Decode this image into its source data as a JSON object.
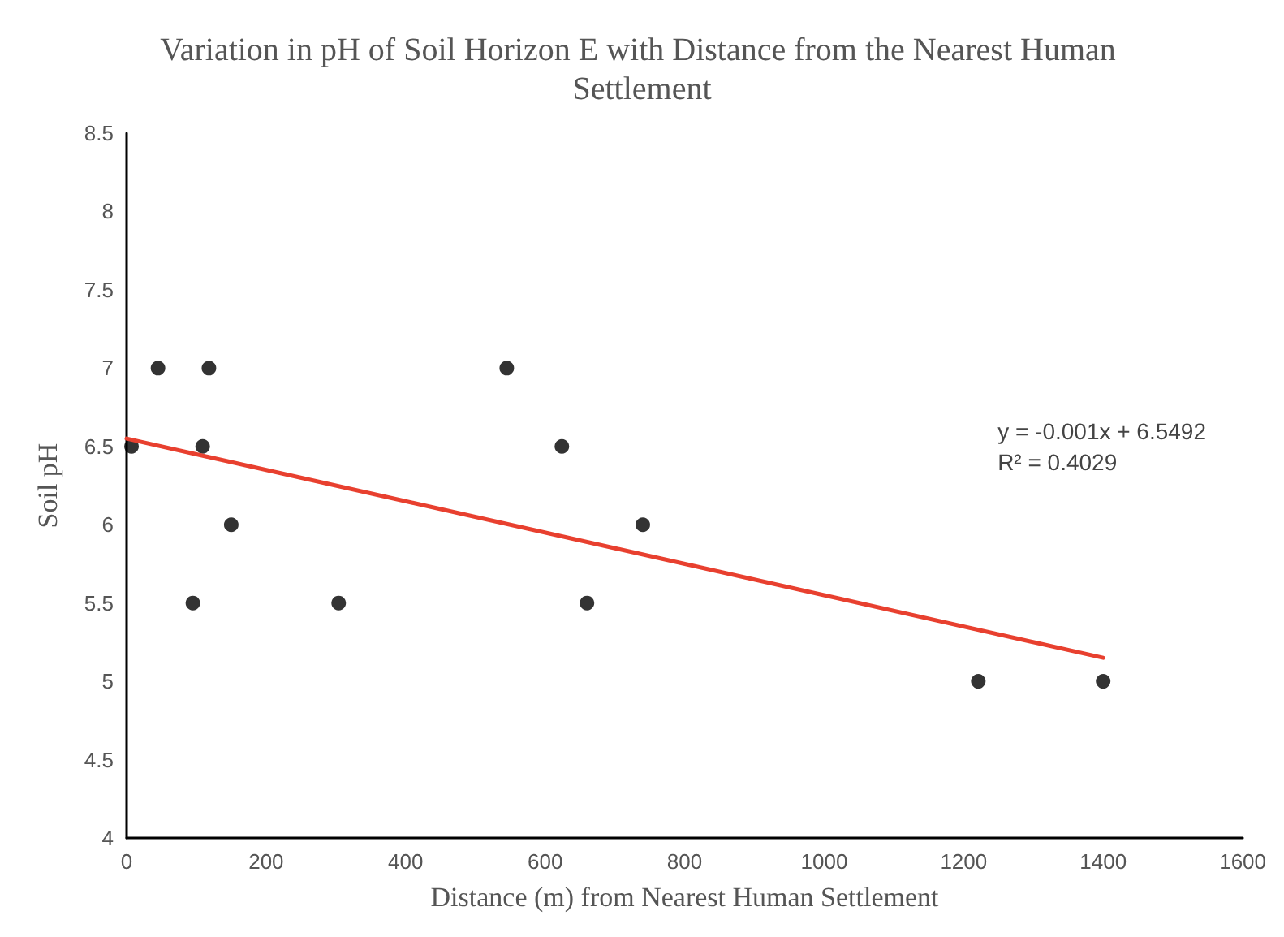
{
  "chart_data": {
    "type": "scatter",
    "title": "Variation in pH of Soil Horizon E with Distance from the Nearest Human Settlement",
    "xlabel": "Distance (m) from Nearest Human Settlement",
    "ylabel": "Soil pH",
    "annotations": [
      "y = -0.001x + 6.5492",
      "R² = 0.4029"
    ],
    "series": [
      {
        "color": "#000000",
        "marker": "circle",
        "x": [
          7,
          45,
          118,
          109,
          150,
          95,
          304,
          545,
          624,
          740,
          660,
          1221,
          1400
        ],
        "values": [
          6.5,
          7,
          7,
          6.5,
          6,
          5.5,
          5.5,
          7,
          6.5,
          6,
          5.5,
          5,
          5
        ]
      },
      {
        "type": "line",
        "color": "#e8402f",
        "x": [
          0,
          1400
        ],
        "values": [
          6.55,
          5.15
        ]
      }
    ],
    "xlim": [
      0,
      1600
    ],
    "xticks": [
      0,
      200,
      400,
      600,
      800,
      1000,
      1200,
      1400,
      1600
    ],
    "ylim": [
      4,
      8.5
    ],
    "yticks": [
      4,
      4.5,
      5,
      5.5,
      6,
      6.5,
      7,
      7.5,
      8,
      8.5
    ],
    "grid": false
  }
}
